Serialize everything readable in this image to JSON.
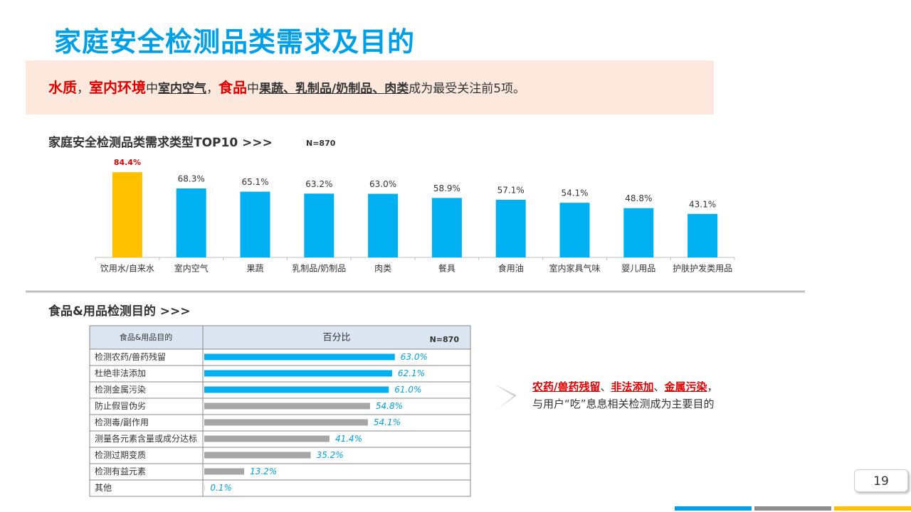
{
  "header": {
    "title": "家庭安全检测品类需求及目的"
  },
  "summary": [
    "水质",
    "，",
    "室内环境",
    "中",
    "室内空气",
    "，",
    "食品",
    "中",
    "果蔬、乳制品/奶制品、肉类",
    "成为最受关注前5项。"
  ],
  "chart_data": [
    {
      "type": "bar",
      "title": "家庭安全检测品类需求类型TOP10 >>>",
      "note": "N=870",
      "categories": [
        "饮用水/自来水",
        "室内空气",
        "果蔬",
        "乳制品/奶制品",
        "肉类",
        "餐具",
        "食用油",
        "室内家具气味",
        "婴儿用品",
        "护肤护发类用品"
      ],
      "values": [
        84.4,
        68.3,
        65.1,
        63.2,
        63.0,
        58.9,
        57.1,
        54.1,
        48.8,
        43.1
      ],
      "value_labels": [
        "84.4%",
        "68.3%",
        "65.1%",
        "63.2%",
        "63.0%",
        "58.9%",
        "57.1%",
        "54.1%",
        "48.8%",
        "43.1%"
      ],
      "colors": [
        "#FFC000",
        "#00B0F0",
        "#00B0F0",
        "#00B0F0",
        "#00B0F0",
        "#00B0F0",
        "#00B0F0",
        "#00B0F0",
        "#00B0F0",
        "#00B0F0"
      ],
      "ylim": [
        0,
        100
      ]
    },
    {
      "type": "hbar",
      "title": "食品&用品检测目的 >>>",
      "note": "N=870",
      "columns": [
        "食品&用品目的",
        "百分比"
      ],
      "categories": [
        "检测农药/兽药残留",
        "杜绝非法添加",
        "检测金属污染",
        "防止假冒伪劣",
        "检测毒/副作用",
        "测量各元素含量或成分达标",
        "检测过期变质",
        "检测有益元素",
        "其他"
      ],
      "values": [
        63.0,
        62.1,
        61.0,
        54.8,
        54.1,
        41.4,
        35.2,
        13.2,
        0.1
      ],
      "value_labels": [
        "63.0%",
        "62.1%",
        "61.0%",
        "54.8%",
        "54.1%",
        "41.4%",
        "35.2%",
        "13.2%",
        "0.1%"
      ],
      "colors": [
        "#00B0F0",
        "#00B0F0",
        "#00B0F0",
        "#A6A6A6",
        "#A6A6A6",
        "#A6A6A6",
        "#A6A6A6",
        "#A6A6A6",
        "#A6A6A6"
      ],
      "xlim": [
        0,
        88
      ]
    }
  ],
  "callout": {
    "parts": [
      "农药/兽药残留",
      "、",
      "非法添加",
      "、",
      "金属污染",
      "，"
    ],
    "line2": "与用户“吃”息息相关检测成为主要目的"
  },
  "page_number": 19
}
